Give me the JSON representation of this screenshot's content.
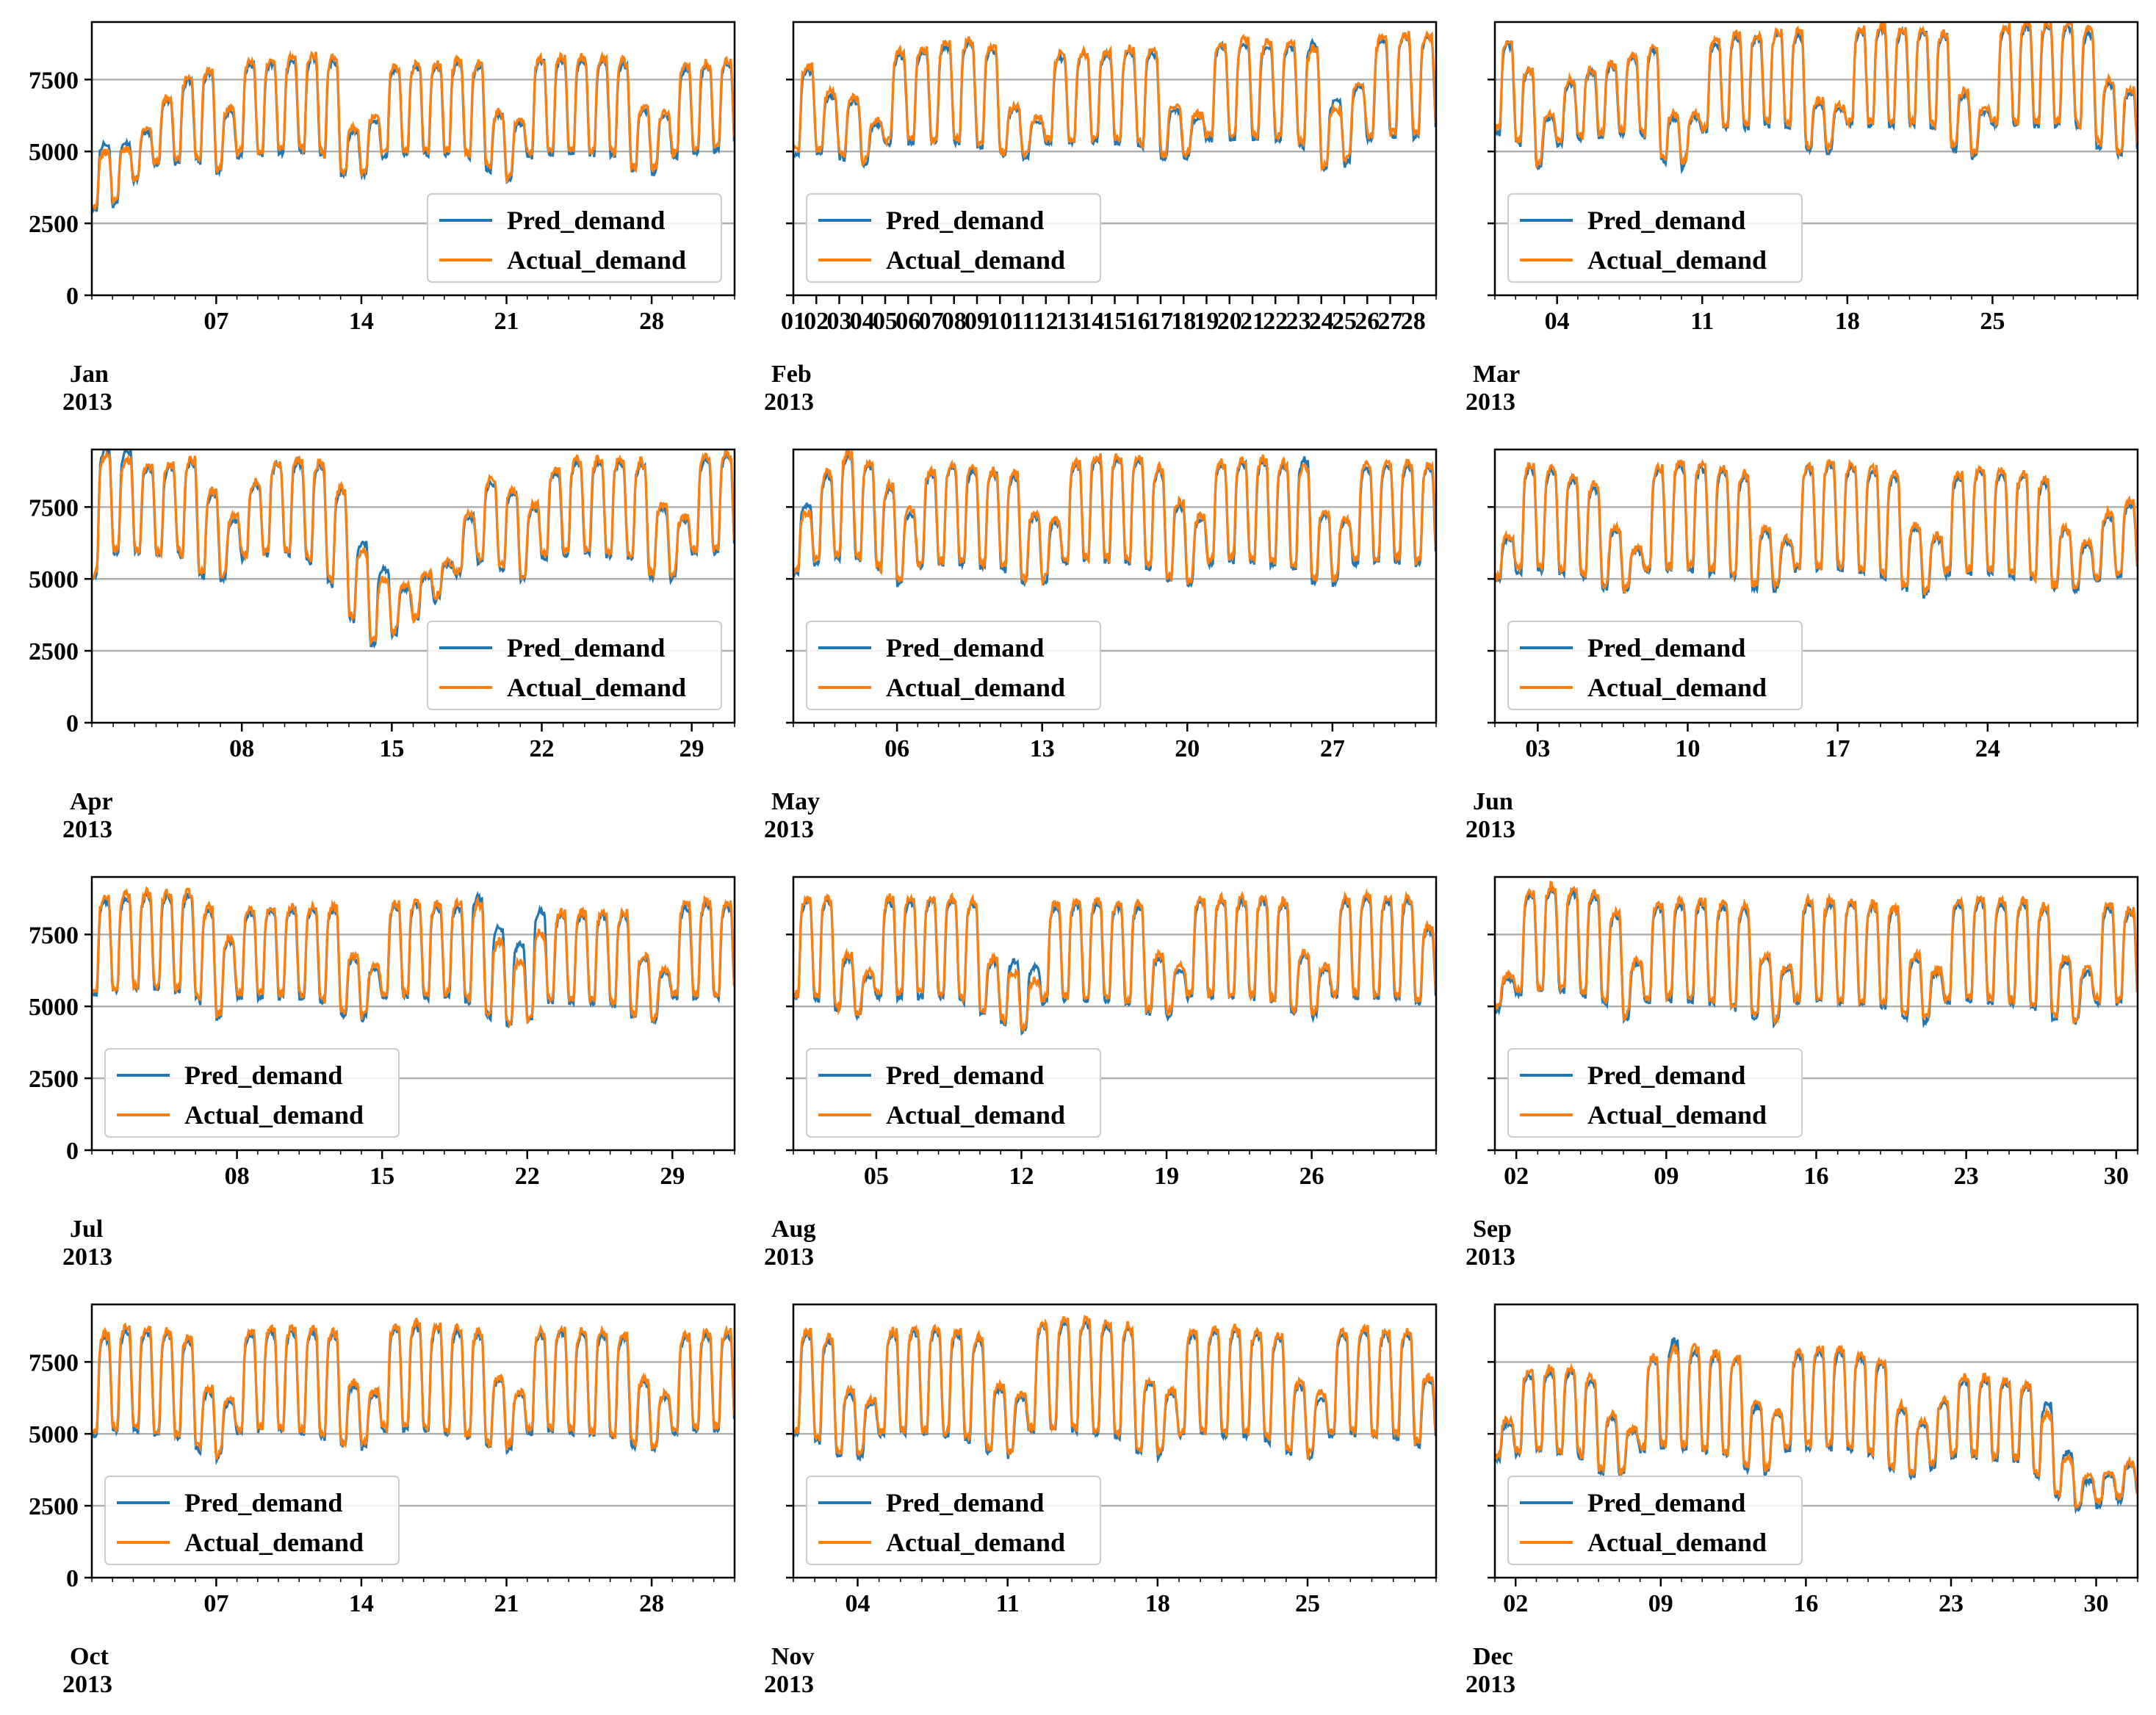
{
  "chart_data": [
    {
      "type": "line",
      "month": "Jan",
      "year": "2013",
      "days": 31,
      "xticks": [
        7,
        14,
        21,
        28
      ],
      "legend_pos": "lower-right",
      "ylim": [
        0,
        9500
      ],
      "yticks": [
        0,
        2500,
        5000,
        7500
      ],
      "series": [
        {
          "name": "Pred_demand",
          "color": "#1f77b4"
        },
        {
          "name": "Actual_demand",
          "color": "#ff7f0e"
        }
      ],
      "daily_peak": [
        5000,
        5100,
        5800,
        6900,
        7600,
        7900,
        6500,
        8200,
        8200,
        8300,
        8400,
        8300,
        5800,
        6200,
        8000,
        8100,
        8100,
        8200,
        8100,
        6400,
        6100,
        8300,
        8300,
        8300,
        8300,
        8200,
        6600,
        6400,
        8000,
        8100,
        8200
      ],
      "daily_trough": [
        3000,
        3200,
        4000,
        4600,
        4700,
        4800,
        4300,
        4900,
        5000,
        5000,
        5100,
        5000,
        4300,
        4200,
        4900,
        5000,
        5000,
        5000,
        5000,
        4500,
        4000,
        4900,
        5000,
        5000,
        5000,
        5000,
        4500,
        4300,
        4900,
        5000,
        5100
      ],
      "blue_dev": {
        "0": 400,
        "1": 300
      }
    },
    {
      "type": "line",
      "month": "Feb",
      "year": "2013",
      "days": 28,
      "xticks": [
        1,
        2,
        3,
        4,
        5,
        6,
        7,
        8,
        9,
        10,
        11,
        12,
        13,
        14,
        15,
        16,
        17,
        18,
        19,
        20,
        21,
        22,
        23,
        24,
        25,
        26,
        27,
        28
      ],
      "legend_pos": "lower-left",
      "ylim": [
        0,
        9500
      ],
      "yticks": [
        0,
        2500,
        5000,
        7500
      ],
      "series": [
        {
          "name": "Pred_demand",
          "color": "#1f77b4"
        },
        {
          "name": "Actual_demand",
          "color": "#ff7f0e"
        }
      ],
      "daily_peak": [
        8000,
        7100,
        6900,
        6100,
        8500,
        8600,
        8800,
        8900,
        8700,
        6600,
        6200,
        8400,
        8500,
        8500,
        8600,
        8600,
        6600,
        6300,
        8800,
        8900,
        8800,
        8800,
        8600,
        6500,
        7400,
        9000,
        9100,
        9100
      ],
      "daily_trough": [
        5000,
        5100,
        4900,
        4600,
        5300,
        5400,
        5400,
        5400,
        5300,
        5000,
        4800,
        5400,
        5400,
        5400,
        5400,
        5300,
        4900,
        4800,
        5500,
        5500,
        5500,
        5500,
        5400,
        4500,
        4600,
        5500,
        5600,
        5600
      ],
      "blue_dev": {
        "22": 300,
        "23": 400
      }
    },
    {
      "type": "line",
      "month": "Mar",
      "year": "2013",
      "days": 31,
      "xticks": [
        4,
        11,
        18,
        25
      ],
      "legend_pos": "lower-left",
      "ylim": [
        0,
        9500
      ],
      "yticks": [
        0,
        2500,
        5000,
        7500
      ],
      "series": [
        {
          "name": "Pred_demand",
          "color": "#1f77b4"
        },
        {
          "name": "Actual_demand",
          "color": "#ff7f0e"
        }
      ],
      "daily_peak": [
        8900,
        7900,
        6300,
        7500,
        7900,
        8100,
        8400,
        8700,
        6300,
        6300,
        8900,
        9100,
        9100,
        9200,
        9200,
        6800,
        6600,
        9300,
        9400,
        9300,
        9300,
        9200,
        7100,
        6500,
        9400,
        9500,
        9500,
        9500,
        9300,
        7500,
        7200
      ],
      "daily_trough": [
        5800,
        5500,
        4500,
        5300,
        5500,
        5600,
        5700,
        5800,
        4800,
        4500,
        5800,
        5900,
        5900,
        6000,
        6000,
        5200,
        5000,
        6000,
        6000,
        6000,
        6000,
        6000,
        5200,
        4800,
        6000,
        6000,
        6000,
        6000,
        6000,
        5300,
        5000
      ],
      "blue_dev": {}
    },
    {
      "type": "line",
      "month": "Apr",
      "year": "2013",
      "days": 30,
      "xticks": [
        8,
        15,
        22,
        29
      ],
      "legend_pos": "lower-right",
      "ylim": [
        0,
        9500
      ],
      "yticks": [
        0,
        2500,
        5000,
        7500
      ],
      "series": [
        {
          "name": "Pred_demand",
          "color": "#1f77b4"
        },
        {
          "name": "Actual_demand",
          "color": "#ff7f0e"
        }
      ],
      "daily_peak": [
        9300,
        9200,
        9000,
        9000,
        9200,
        8100,
        7200,
        8400,
        9100,
        9200,
        9100,
        8200,
        6000,
        5000,
        4800,
        5200,
        5600,
        7300,
        8500,
        8100,
        7600,
        8800,
        9200,
        9200,
        9200,
        9100,
        7600,
        7200,
        9300,
        9400
      ],
      "daily_trough": [
        5000,
        6000,
        6000,
        5900,
        6000,
        5200,
        5000,
        5800,
        5900,
        6000,
        5800,
        5100,
        3800,
        2800,
        3100,
        3600,
        4300,
        5200,
        5700,
        5500,
        5000,
        5800,
        5900,
        6000,
        5900,
        5900,
        5200,
        5000,
        6000,
        6000
      ],
      "blue_dev": {
        "0": 400,
        "1": 400,
        "12": 400,
        "13": 500
      }
    },
    {
      "type": "line",
      "month": "May",
      "year": "2013",
      "days": 31,
      "xticks": [
        6,
        13,
        20,
        27
      ],
      "legend_pos": "lower-left",
      "ylim": [
        0,
        9500
      ],
      "yticks": [
        0,
        2500,
        5000,
        7500
      ],
      "series": [
        {
          "name": "Pred_demand",
          "color": "#1f77b4"
        },
        {
          "name": "Actual_demand",
          "color": "#ff7f0e"
        }
      ],
      "daily_peak": [
        7300,
        8700,
        9400,
        9100,
        8300,
        7400,
        8800,
        9000,
        8900,
        8800,
        8700,
        7300,
        7100,
        9100,
        9300,
        9300,
        9300,
        8900,
        7700,
        7200,
        9100,
        9200,
        9200,
        9100,
        8900,
        7400,
        7100,
        9000,
        9100,
        9100,
        9000
      ],
      "daily_trough": [
        5200,
        5600,
        5800,
        5800,
        5500,
        4900,
        5500,
        5600,
        5600,
        5500,
        5500,
        5000,
        4900,
        5600,
        5700,
        5700,
        5700,
        5500,
        5100,
        4800,
        5600,
        5700,
        5700,
        5600,
        5500,
        5000,
        4900,
        5600,
        5700,
        5700,
        5600
      ],
      "blue_dev": {
        "0": 400,
        "24": 400
      }
    },
    {
      "type": "line",
      "month": "Jun",
      "year": "2013",
      "days": 30,
      "xticks": [
        3,
        10,
        17,
        24
      ],
      "legend_pos": "lower-left",
      "ylim": [
        0,
        9500
      ],
      "yticks": [
        0,
        2500,
        5000,
        7500
      ],
      "series": [
        {
          "name": "Pred_demand",
          "color": "#1f77b4"
        },
        {
          "name": "Actual_demand",
          "color": "#ff7f0e"
        }
      ],
      "daily_peak": [
        6500,
        9000,
        8900,
        8600,
        8300,
        6800,
        6100,
        8900,
        9100,
        9000,
        8900,
        8700,
        6800,
        6400,
        9000,
        9100,
        9000,
        8900,
        8700,
        6900,
        6500,
        8700,
        8900,
        8800,
        8700,
        8500,
        6800,
        6300,
        7300,
        7700
      ],
      "daily_trough": [
        5000,
        5300,
        5400,
        5300,
        5200,
        4800,
        4600,
        5300,
        5400,
        5400,
        5300,
        5200,
        4800,
        4700,
        5400,
        5400,
        5400,
        5300,
        5200,
        4800,
        4500,
        5200,
        5300,
        5300,
        5200,
        5100,
        4800,
        4700,
        5000,
        5200
      ],
      "blue_dev": {}
    },
    {
      "type": "line",
      "month": "Jul",
      "year": "2013",
      "days": 31,
      "xticks": [
        8,
        15,
        22,
        29
      ],
      "legend_pos": "lower-left",
      "ylim": [
        0,
        9500
      ],
      "yticks": [
        0,
        2500,
        5000,
        7500
      ],
      "series": [
        {
          "name": "Pred_demand",
          "color": "#1f77b4"
        },
        {
          "name": "Actual_demand",
          "color": "#ff7f0e"
        }
      ],
      "daily_peak": [
        8800,
        8900,
        9000,
        9000,
        9000,
        8500,
        7400,
        8400,
        8500,
        8500,
        8500,
        8500,
        6800,
        6400,
        8600,
        8700,
        8600,
        8600,
        8600,
        7300,
        6600,
        7600,
        8300,
        8300,
        8300,
        8300,
        6800,
        6300,
        8600,
        8700,
        8600
      ],
      "daily_trough": [
        5500,
        5600,
        5700,
        5700,
        5600,
        5400,
        4600,
        5400,
        5400,
        5400,
        5400,
        5300,
        4800,
        4600,
        5400,
        5400,
        5400,
        5400,
        5300,
        4800,
        4400,
        4500,
        5200,
        5200,
        5200,
        5200,
        4800,
        4500,
        5400,
        5400,
        5400
      ],
      "blue_dev": {
        "18": 400,
        "19": 600,
        "20": 700,
        "21": 900
      }
    },
    {
      "type": "line",
      "month": "Aug",
      "year": "2013",
      "days": 31,
      "xticks": [
        5,
        12,
        19,
        26
      ],
      "legend_pos": "lower-left",
      "ylim": [
        0,
        9500
      ],
      "yticks": [
        0,
        2500,
        5000,
        7500
      ],
      "series": [
        {
          "name": "Pred_demand",
          "color": "#1f77b4"
        },
        {
          "name": "Actual_demand",
          "color": "#ff7f0e"
        }
      ],
      "daily_peak": [
        8800,
        8800,
        6800,
        6200,
        8800,
        8800,
        8800,
        8800,
        8700,
        6700,
        6200,
        5900,
        8600,
        8700,
        8700,
        8600,
        8600,
        6800,
        6400,
        8800,
        8800,
        8800,
        8800,
        8700,
        6900,
        6400,
        8800,
        8900,
        8800,
        8800,
        7800
      ],
      "daily_trough": [
        5400,
        5400,
        5000,
        4700,
        5400,
        5400,
        5400,
        5400,
        5300,
        4900,
        4600,
        4100,
        5200,
        5300,
        5300,
        5300,
        5200,
        4900,
        4700,
        5400,
        5400,
        5400,
        5400,
        5300,
        4900,
        4700,
        5400,
        5400,
        5400,
        5400,
        5200
      ],
      "blue_dev": {
        "10": 500,
        "11": 600
      }
    },
    {
      "type": "line",
      "month": "Sep",
      "year": "2013",
      "days": 30,
      "xticks": [
        2,
        9,
        16,
        23,
        30
      ],
      "legend_pos": "lower-left",
      "ylim": [
        0,
        9500
      ],
      "yticks": [
        0,
        2500,
        5000,
        7500
      ],
      "series": [
        {
          "name": "Pred_demand",
          "color": "#1f77b4"
        },
        {
          "name": "Actual_demand",
          "color": "#ff7f0e"
        }
      ],
      "daily_peak": [
        6100,
        9000,
        9200,
        9100,
        9000,
        8300,
        6600,
        8600,
        8700,
        8700,
        8600,
        8500,
        6800,
        6400,
        8700,
        8700,
        8700,
        8600,
        8500,
        6800,
        6300,
        8700,
        8800,
        8700,
        8700,
        8500,
        6700,
        6300,
        8600,
        8400
      ],
      "daily_trough": [
        4900,
        5500,
        5600,
        5600,
        5500,
        5300,
        4600,
        5200,
        5300,
        5300,
        5200,
        5100,
        4700,
        4500,
        5200,
        5300,
        5200,
        5200,
        5100,
        4700,
        4500,
        5200,
        5300,
        5200,
        5200,
        5100,
        4700,
        4500,
        5200,
        5200
      ],
      "blue_dev": {}
    },
    {
      "type": "line",
      "month": "Oct",
      "year": "2013",
      "days": 31,
      "xticks": [
        7,
        14,
        21,
        28
      ],
      "legend_pos": "lower-left",
      "ylim": [
        0,
        9500
      ],
      "yticks": [
        0,
        2500,
        5000,
        7500
      ],
      "series": [
        {
          "name": "Pred_demand",
          "color": "#1f77b4"
        },
        {
          "name": "Actual_demand",
          "color": "#ff7f0e"
        }
      ],
      "daily_peak": [
        8500,
        8700,
        8700,
        8600,
        8400,
        6600,
        6200,
        8600,
        8700,
        8700,
        8700,
        8600,
        6800,
        6500,
        8800,
        8900,
        8800,
        8700,
        8600,
        7000,
        6500,
        8600,
        8700,
        8600,
        8600,
        8500,
        6900,
        6400,
        8500,
        8600,
        8600
      ],
      "daily_trough": [
        5000,
        5200,
        5200,
        5100,
        5000,
        4600,
        4200,
        5100,
        5200,
        5200,
        5100,
        5000,
        4700,
        4600,
        5200,
        5200,
        5200,
        5100,
        5000,
        4700,
        4500,
        5100,
        5200,
        5100,
        5100,
        5000,
        4700,
        4500,
        5100,
        5200,
        5200
      ],
      "blue_dev": {}
    },
    {
      "type": "line",
      "month": "Nov",
      "year": "2013",
      "days": 30,
      "xticks": [
        4,
        11,
        18,
        25
      ],
      "legend_pos": "lower-left",
      "ylim": [
        0,
        9500
      ],
      "yticks": [
        0,
        2500,
        5000,
        7500
      ],
      "series": [
        {
          "name": "Pred_demand",
          "color": "#1f77b4"
        },
        {
          "name": "Actual_demand",
          "color": "#ff7f0e"
        }
      ],
      "daily_peak": [
        8600,
        8400,
        6500,
        6200,
        8600,
        8700,
        8700,
        8600,
        8400,
        6700,
        6400,
        8900,
        9000,
        9000,
        8900,
        8800,
        6900,
        6500,
        8600,
        8700,
        8700,
        8600,
        8500,
        6800,
        6400,
        8600,
        8700,
        8600,
        8600,
        7000
      ],
      "daily_trough": [
        5100,
        4900,
        4400,
        4200,
        5000,
        5100,
        5100,
        5000,
        4900,
        4500,
        4300,
        5200,
        5200,
        5200,
        5100,
        5000,
        4500,
        4300,
        5000,
        5100,
        5000,
        5000,
        4900,
        4500,
        4200,
        5000,
        5100,
        5000,
        5000,
        4700
      ],
      "blue_dev": {}
    },
    {
      "type": "line",
      "month": "Dec",
      "year": "2013",
      "days": 31,
      "xticks": [
        2,
        9,
        16,
        23,
        30
      ],
      "legend_pos": "lower-left",
      "ylim": [
        0,
        9500
      ],
      "yticks": [
        0,
        2500,
        5000,
        7500
      ],
      "series": [
        {
          "name": "Pred_demand",
          "color": "#1f77b4"
        },
        {
          "name": "Actual_demand",
          "color": "#ff7f0e"
        }
      ],
      "daily_peak": [
        5500,
        7200,
        7300,
        7300,
        7000,
        5700,
        5200,
        7700,
        8000,
        8000,
        7900,
        7700,
        6100,
        5800,
        7900,
        8000,
        8000,
        7800,
        7600,
        6000,
        5500,
        6200,
        7000,
        7000,
        6900,
        6800,
        5700,
        4200,
        3500,
        3700,
        4000
      ],
      "daily_trough": [
        4200,
        4400,
        4500,
        4400,
        4300,
        3800,
        3600,
        4500,
        4600,
        4600,
        4500,
        4400,
        3900,
        3700,
        4500,
        4600,
        4600,
        4500,
        4400,
        3900,
        3600,
        3900,
        4300,
        4300,
        4200,
        4200,
        3700,
        3000,
        2500,
        2600,
        2800
      ],
      "blue_dev": {
        "8": 400,
        "26": 500,
        "27": 300
      }
    }
  ]
}
